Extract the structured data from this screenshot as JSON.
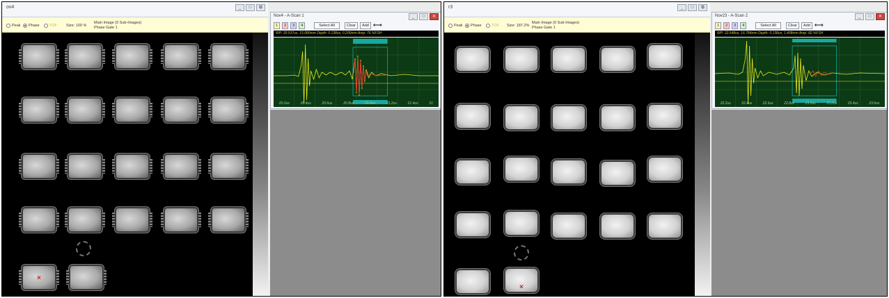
{
  "left": {
    "window_title": "ov4",
    "toolbar": {
      "radio_peak": "Peak",
      "radio_phase": "Phase",
      "radio_tof": "TOF",
      "size_text": "Size: 100 %",
      "info_line1": "Main Image (0 Sub-Images)",
      "info_line2": "Phase Gate 1"
    },
    "ascan": {
      "title": "Nov4 - A-Scan 1",
      "gate_buttons": [
        "1",
        "2",
        "3",
        "4"
      ],
      "select_all": "Select All",
      "clear": "Clear",
      "add": "Add",
      "readout": "WP: 20.537us, 15.080mm   Depth: 0.138us, 0.200mm   Amp: 76.%FSH",
      "x_ticks": [
        "20.2us",
        "20.4us",
        "20.6us",
        "20.8us",
        "21.0us",
        "21.2us",
        "21.4us",
        "21"
      ],
      "accent_trace": "#e8e820",
      "accent_echo": "#e03030",
      "gate_color": "#18a8a0"
    }
  },
  "right": {
    "window_title": "r3",
    "toolbar": {
      "radio_peak": "Peak",
      "radio_phase": "Phase",
      "radio_tof": "TOF",
      "size_text": "Size: 187.2%",
      "info_line1": "Main Image (0 Sub-Images)",
      "info_line2": "Phase Gate 1"
    },
    "ascan": {
      "title": "Nov23 - A-Scan 2",
      "gate_buttons": [
        "1",
        "2",
        "3",
        "4"
      ],
      "select_all": "Select All",
      "clear": "Clear",
      "add": "Add",
      "readout": "WP: 22.648us, 16.784mm   Depth: 0.138us, 1.408mm   Amp: 82.%FSH",
      "x_ticks": [
        "22.2us",
        "22.4us",
        "22.6us",
        "22.8us",
        "23.0us",
        "23.2us",
        "23.4us",
        "23.6us"
      ],
      "accent_trace": "#e8e820",
      "accent_echo": "#e03030",
      "gate_color": "#18a8a0"
    }
  }
}
